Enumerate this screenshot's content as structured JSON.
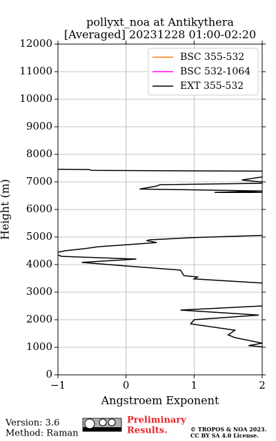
{
  "chart_data": {
    "type": "line",
    "title": "pollyxt_noa at Antikythera",
    "subtitle": "[Averaged] 20231228 01:00-02:20",
    "xlabel": "Angstroem Exponent",
    "ylabel": "Height (m)",
    "xlim": [
      -1,
      2
    ],
    "ylim": [
      0,
      12000
    ],
    "xticks": [
      {
        "value": -1,
        "label": "−1"
      },
      0,
      1,
      2
    ],
    "yticks": [
      0,
      1000,
      2000,
      3000,
      4000,
      5000,
      6000,
      7000,
      8000,
      9000,
      10000,
      11000,
      12000
    ],
    "grid": true,
    "legend": "upper right",
    "series": [
      {
        "name": "BSC 355-532",
        "color": "#ff7f0e",
        "x": [],
        "y": []
      },
      {
        "name": "BSC 532-1064",
        "color": "#ff00ff",
        "x": [],
        "y": []
      },
      {
        "name": "EXT 355-532",
        "color": "#000000",
        "x": [
          -1,
          -0.55,
          -0.5,
          0.2,
          2.0,
          null,
          2.0,
          1.7,
          1.9,
          2.0,
          null,
          2.0,
          0.5,
          0.45,
          0.2,
          1.3,
          2.0,
          1.3,
          2.0,
          null,
          2.0,
          1.0,
          0.35,
          0.3,
          0.45,
          0.0,
          -0.4,
          -0.6,
          -0.9,
          -1.0,
          null,
          -1.0,
          -0.95,
          0.15,
          -0.65,
          0.0,
          0.8,
          0.85,
          1.05,
          1.0,
          2.0,
          null,
          2.0,
          0.8,
          1.95,
          1.0,
          0.95,
          1.6,
          1.5,
          1.6,
          2.0,
          1.8,
          2.0
        ],
        "y": [
          7460,
          7450,
          7420,
          7410,
          7390,
          null,
          7180,
          7070,
          7020,
          7000,
          null,
          6950,
          6900,
          6850,
          6740,
          6700,
          6670,
          6620,
          6620,
          null,
          5060,
          4980,
          4900,
          4870,
          4800,
          4720,
          4650,
          4580,
          4500,
          4450,
          null,
          4350,
          4300,
          4200,
          4080,
          3950,
          3800,
          3600,
          3550,
          3480,
          3330,
          null,
          2500,
          2350,
          2170,
          2000,
          1850,
          1620,
          1450,
          1350,
          1150,
          1060,
          1020
        ]
      }
    ]
  },
  "footer": {
    "version": "Version: 3.6",
    "method": "Method: Raman",
    "status": "Preliminary Results.",
    "license": [
      "© TROPOS & NOA 2023.",
      "CC BY SA 4.0 License."
    ]
  }
}
